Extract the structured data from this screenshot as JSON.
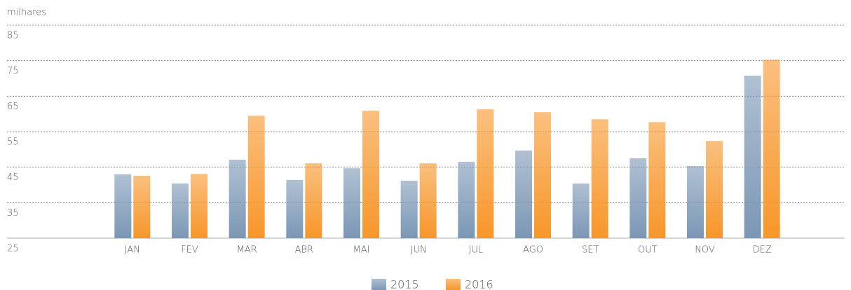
{
  "chart_data": {
    "type": "bar",
    "y_label": "milhares",
    "categories": [
      "JAN",
      "FEV",
      "MAR",
      "ABR",
      "MAI",
      "JUN",
      "JUL",
      "AGO",
      "SET",
      "OUT",
      "NOV",
      "DEZ"
    ],
    "series": [
      {
        "name": "2015",
        "color": "#7b97b5",
        "values": [
          43,
          40.4,
          47.1,
          41.4,
          44.7,
          41.2,
          46.5,
          49.7,
          40.4,
          47.5,
          45.3,
          70.8
        ]
      },
      {
        "name": "2016",
        "color": "#f7962a",
        "values": [
          42.6,
          43.1,
          59.5,
          46.1,
          60.9,
          46.1,
          61.3,
          60.5,
          58.5,
          57.7,
          52.4,
          75.3
        ]
      }
    ],
    "ylim": [
      25,
      85
    ],
    "yticks": [
      25,
      35,
      45,
      55,
      65,
      75,
      85
    ],
    "grid": true
  }
}
